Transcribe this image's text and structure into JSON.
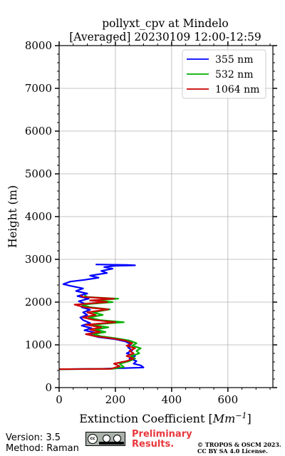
{
  "chart_data": {
    "type": "line",
    "title_line1": "pollyxt_cpv at Mindelo",
    "title_line2": "[Averaged] 20230109 12:00-12:59",
    "xlabel": "Extinction Coefficient [",
    "xlabel_unit": "Mm",
    "xlabel_exp": "−1",
    "xlabel_close": "]",
    "ylabel": "Height (m)",
    "xlim": [
      0,
      760
    ],
    "ylim": [
      0,
      8000
    ],
    "x_ticks": [
      0,
      200,
      400,
      600
    ],
    "x_tick_labels": [
      "0",
      "200",
      "400",
      "600"
    ],
    "y_ticks": [
      0,
      1000,
      2000,
      3000,
      4000,
      5000,
      6000,
      7000,
      8000
    ],
    "y_tick_labels": [
      "0",
      "1000",
      "2000",
      "3000",
      "4000",
      "5000",
      "6000",
      "7000",
      "8000"
    ],
    "grid": true,
    "legend_position": "top-right",
    "series": [
      {
        "name": "355 nm",
        "color": "#0000ff",
        "points": [
          [
            0,
            430
          ],
          [
            150,
            440
          ],
          [
            300,
            470
          ],
          [
            290,
            520
          ],
          [
            265,
            560
          ],
          [
            275,
            620
          ],
          [
            250,
            680
          ],
          [
            270,
            740
          ],
          [
            240,
            800
          ],
          [
            260,
            870
          ],
          [
            245,
            940
          ],
          [
            255,
            1010
          ],
          [
            235,
            1080
          ],
          [
            200,
            1130
          ],
          [
            140,
            1180
          ],
          [
            110,
            1230
          ],
          [
            125,
            1290
          ],
          [
            90,
            1340
          ],
          [
            115,
            1390
          ],
          [
            80,
            1450
          ],
          [
            110,
            1510
          ],
          [
            85,
            1580
          ],
          [
            75,
            1640
          ],
          [
            100,
            1700
          ],
          [
            85,
            1760
          ],
          [
            110,
            1820
          ],
          [
            80,
            1880
          ],
          [
            95,
            1950
          ],
          [
            70,
            2020
          ],
          [
            105,
            2080
          ],
          [
            65,
            2140
          ],
          [
            100,
            2200
          ],
          [
            60,
            2260
          ],
          [
            85,
            2320
          ],
          [
            40,
            2380
          ],
          [
            15,
            2420
          ],
          [
            40,
            2480
          ],
          [
            90,
            2520
          ],
          [
            140,
            2570
          ],
          [
            110,
            2620
          ],
          [
            170,
            2680
          ],
          [
            150,
            2730
          ],
          [
            190,
            2780
          ],
          [
            160,
            2820
          ],
          [
            200,
            2850
          ],
          [
            270,
            2860
          ],
          [
            240,
            2870
          ],
          [
            130,
            2880
          ]
        ]
      },
      {
        "name": "532 nm",
        "color": "#00b000",
        "points": [
          [
            0,
            430
          ],
          [
            190,
            440
          ],
          [
            230,
            480
          ],
          [
            215,
            560
          ],
          [
            250,
            620
          ],
          [
            270,
            680
          ],
          [
            255,
            740
          ],
          [
            285,
            800
          ],
          [
            275,
            860
          ],
          [
            290,
            920
          ],
          [
            260,
            980
          ],
          [
            275,
            1040
          ],
          [
            250,
            1100
          ],
          [
            205,
            1150
          ],
          [
            150,
            1200
          ],
          [
            120,
            1250
          ],
          [
            165,
            1300
          ],
          [
            130,
            1360
          ],
          [
            175,
            1410
          ],
          [
            115,
            1470
          ],
          [
            230,
            1530
          ],
          [
            145,
            1580
          ],
          [
            105,
            1640
          ],
          [
            155,
            1700
          ],
          [
            120,
            1760
          ],
          [
            180,
            1830
          ],
          [
            110,
            1880
          ],
          [
            80,
            1940
          ],
          [
            190,
            2000
          ],
          [
            130,
            2040
          ],
          [
            210,
            2080
          ],
          [
            100,
            2120
          ],
          [
            90,
            2160
          ]
        ]
      },
      {
        "name": "1064 nm",
        "color": "#cc0000",
        "points": [
          [
            0,
            430
          ],
          [
            185,
            440
          ],
          [
            215,
            500
          ],
          [
            195,
            560
          ],
          [
            240,
            620
          ],
          [
            265,
            680
          ],
          [
            240,
            740
          ],
          [
            265,
            800
          ],
          [
            250,
            860
          ],
          [
            270,
            920
          ],
          [
            240,
            980
          ],
          [
            260,
            1040
          ],
          [
            235,
            1100
          ],
          [
            190,
            1150
          ],
          [
            130,
            1200
          ],
          [
            95,
            1250
          ],
          [
            145,
            1300
          ],
          [
            110,
            1360
          ],
          [
            150,
            1410
          ],
          [
            95,
            1470
          ],
          [
            200,
            1530
          ],
          [
            125,
            1580
          ],
          [
            85,
            1640
          ],
          [
            130,
            1700
          ],
          [
            100,
            1760
          ],
          [
            175,
            1830
          ],
          [
            90,
            1880
          ],
          [
            55,
            1940
          ],
          [
            170,
            2000
          ],
          [
            110,
            2040
          ],
          [
            195,
            2080
          ],
          [
            85,
            2120
          ],
          [
            75,
            2160
          ]
        ]
      }
    ]
  },
  "footer": {
    "version": "Version: 3.5",
    "method": "Method: Raman",
    "cc_label": "cc",
    "preliminary_line1": "Preliminary",
    "preliminary_line2": "Results.",
    "copyright_line1": "© TROPOS & OSCM 2023.",
    "copyright_line2": "CC BY SA 4.0 License."
  }
}
